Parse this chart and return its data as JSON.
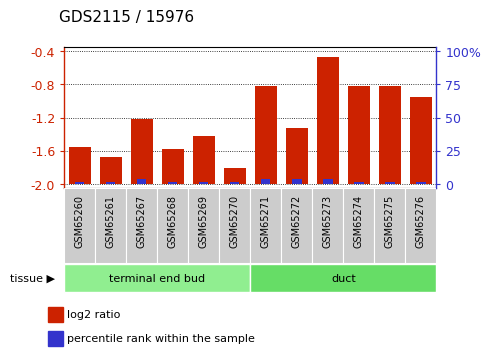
{
  "title": "GDS2115 / 15976",
  "categories": [
    "GSM65260",
    "GSM65261",
    "GSM65267",
    "GSM65268",
    "GSM65269",
    "GSM65270",
    "GSM65271",
    "GSM65272",
    "GSM65273",
    "GSM65274",
    "GSM65275",
    "GSM65276"
  ],
  "log2_values": [
    -1.55,
    -1.67,
    -1.21,
    -1.58,
    -1.42,
    -1.8,
    -0.82,
    -1.32,
    -0.47,
    -0.82,
    -0.82,
    -0.95
  ],
  "percentile_values": [
    2,
    2,
    4,
    2,
    2,
    2,
    4,
    4,
    4,
    2,
    2,
    2
  ],
  "bar_color": "#cc2200",
  "percentile_color": "#3333cc",
  "ylim_min": -2.05,
  "ylim_max": -0.35,
  "bar_base": -2.0,
  "yticks_left": [
    -2.0,
    -1.6,
    -1.2,
    -0.8,
    -0.4
  ],
  "yticks_right_pct": [
    0,
    25,
    50,
    75,
    100
  ],
  "tissue_groups": [
    {
      "label": "terminal end bud",
      "start": 0,
      "end": 6,
      "color": "#90ee90"
    },
    {
      "label": "duct",
      "start": 6,
      "end": 12,
      "color": "#66dd66"
    }
  ],
  "tissue_label": "tissue",
  "legend_log2": "log2 ratio",
  "legend_percentile": "percentile rank within the sample",
  "bar_width": 0.7,
  "pct_bar_width": 0.3,
  "grid_linestyle": "dotted",
  "tick_bg_color": "#cccccc",
  "tick_label_fontsize": 7,
  "axis_label_fontsize": 9,
  "title_fontsize": 11
}
